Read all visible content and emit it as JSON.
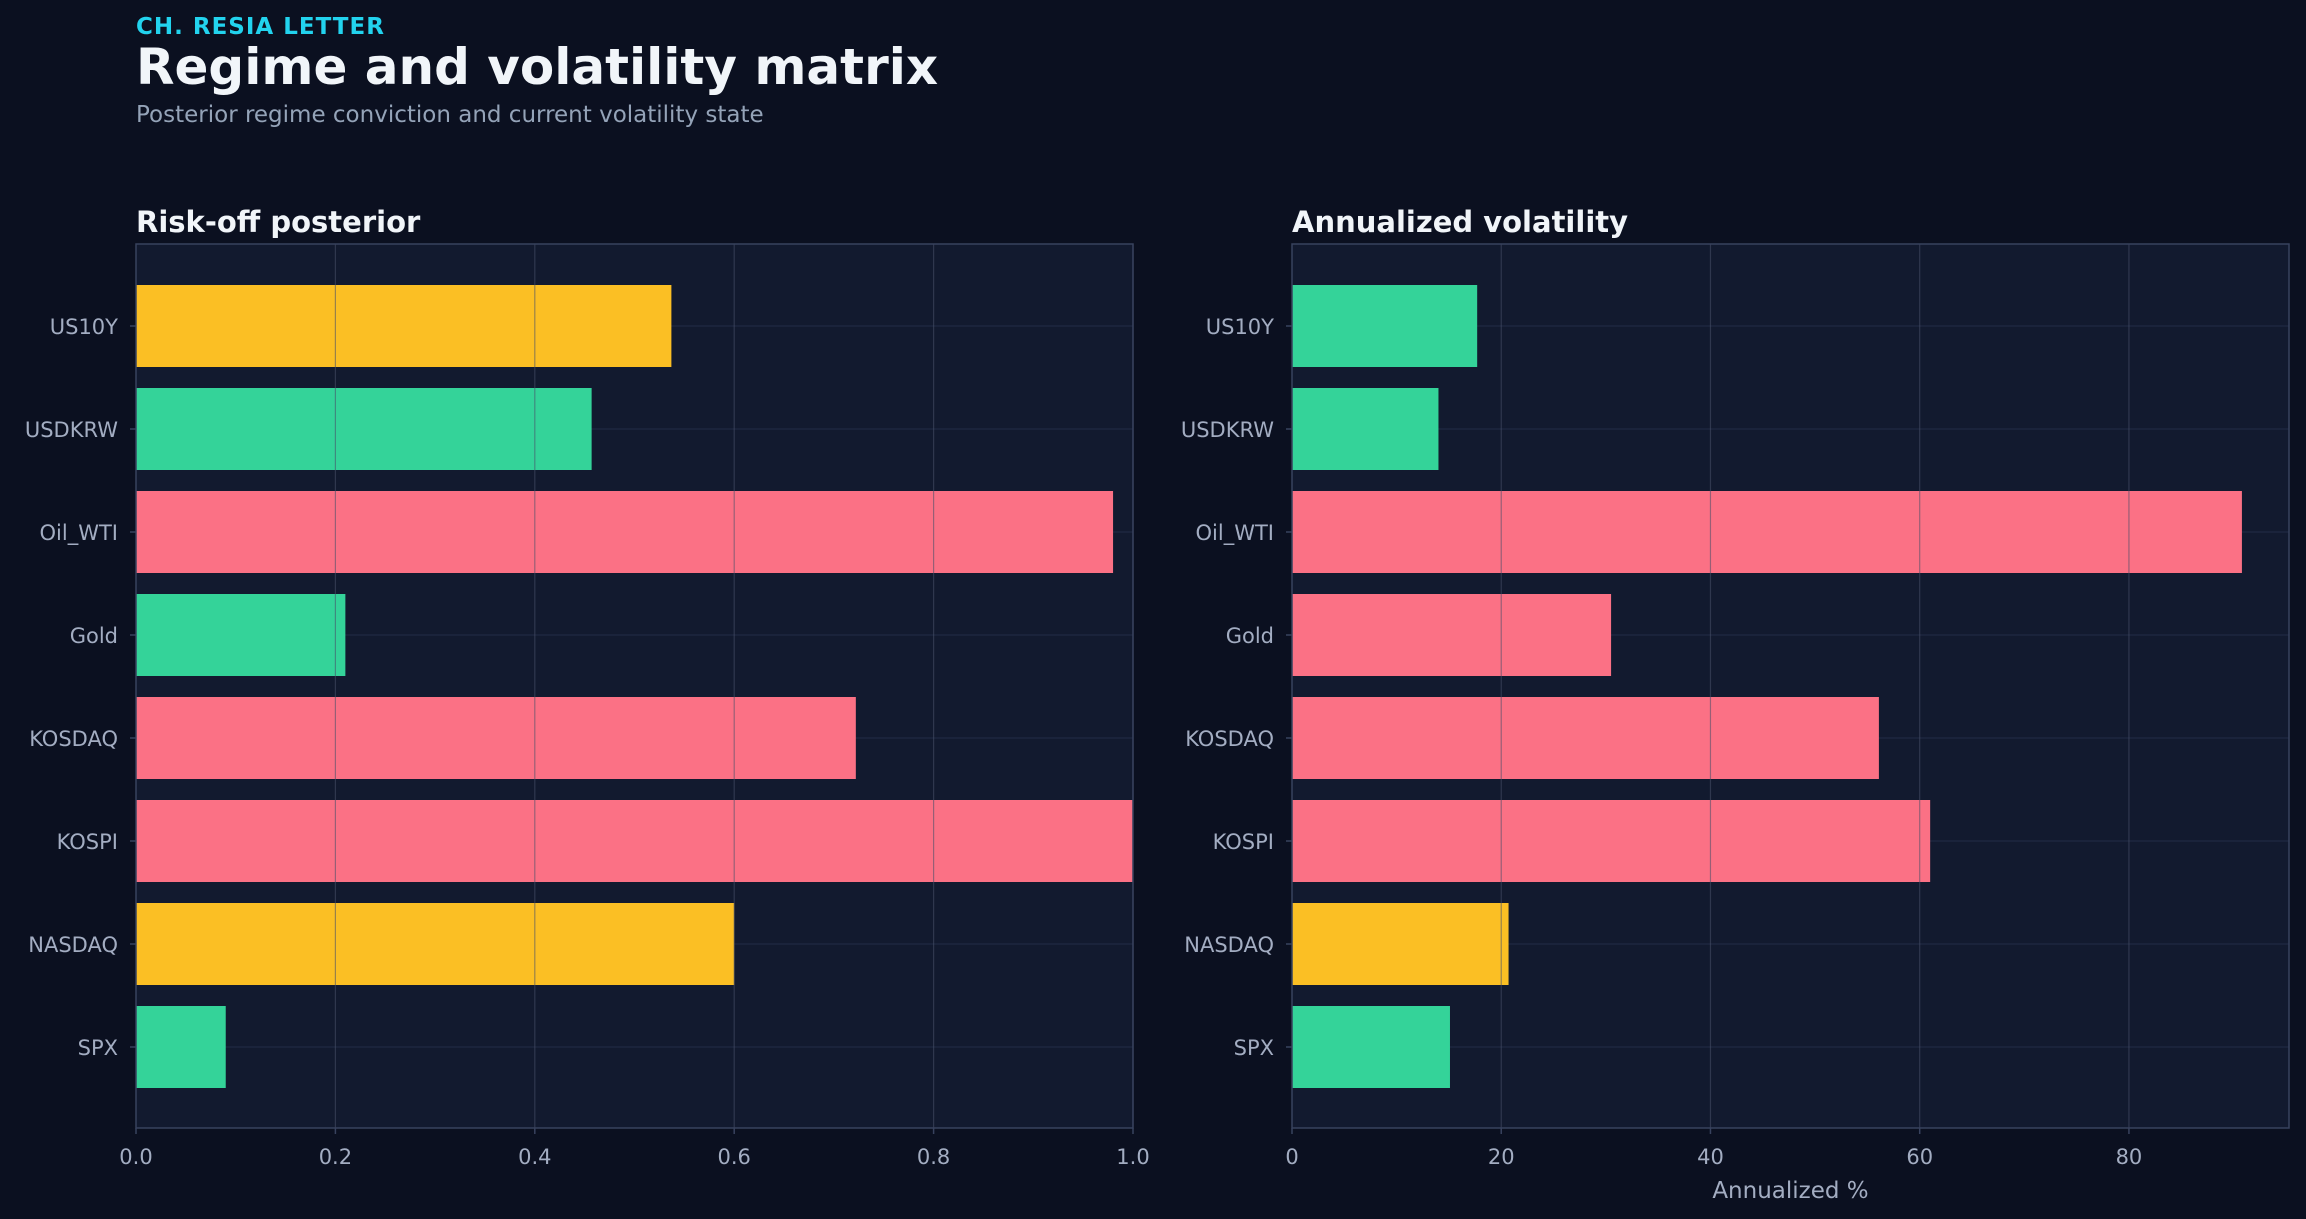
{
  "header": {
    "kicker": "CH. RESIA LETTER",
    "title": "Regime and volatility matrix",
    "subtitle": "Posterior regime conviction and current volatility state"
  },
  "colors": {
    "background": "#0b1020",
    "panel": "#121a2f",
    "panel_border": "#38425e",
    "grid": "#2a3350",
    "kicker": "#22d3ee",
    "title": "#f1f5f9",
    "subtitle": "#94a3b8",
    "tick": "#a3adc2",
    "risk_off": "#fb7185",
    "neutral": "#fbbf24",
    "risk_on": "#34d399"
  },
  "chart_data": [
    {
      "type": "bar",
      "orientation": "horizontal",
      "title": "Risk-off posterior",
      "xlabel": "",
      "categories": [
        "US10Y",
        "USDKRW",
        "Oil_WTI",
        "Gold",
        "KOSDAQ",
        "KOSPI",
        "NASDAQ",
        "SPX"
      ],
      "values": [
        0.537,
        0.457,
        0.98,
        0.21,
        0.722,
        1.0,
        0.6,
        0.09
      ],
      "bar_colors": [
        "#fbbf24",
        "#34d399",
        "#fb7185",
        "#34d399",
        "#fb7185",
        "#fb7185",
        "#fbbf24",
        "#34d399"
      ],
      "xlim": [
        0,
        1.0
      ],
      "xticks": [
        0.0,
        0.2,
        0.4,
        0.6,
        0.8,
        1.0
      ],
      "xtick_labels": [
        "0.0",
        "0.2",
        "0.4",
        "0.6",
        "0.8",
        "1.0"
      ],
      "grid": true
    },
    {
      "type": "bar",
      "orientation": "horizontal",
      "title": "Annualized volatility",
      "xlabel": "Annualized %",
      "categories": [
        "US10Y",
        "USDKRW",
        "Oil_WTI",
        "Gold",
        "KOSDAQ",
        "KOSPI",
        "NASDAQ",
        "SPX"
      ],
      "values": [
        17.7,
        14.0,
        90.8,
        30.5,
        56.1,
        61.0,
        20.7,
        15.1
      ],
      "bar_colors": [
        "#34d399",
        "#34d399",
        "#fb7185",
        "#fb7185",
        "#fb7185",
        "#fb7185",
        "#fbbf24",
        "#34d399"
      ],
      "xlim": [
        0,
        95.3
      ],
      "xticks": [
        0,
        20,
        40,
        60,
        80
      ],
      "xtick_labels": [
        "0",
        "20",
        "40",
        "60",
        "80"
      ],
      "grid": true
    }
  ]
}
